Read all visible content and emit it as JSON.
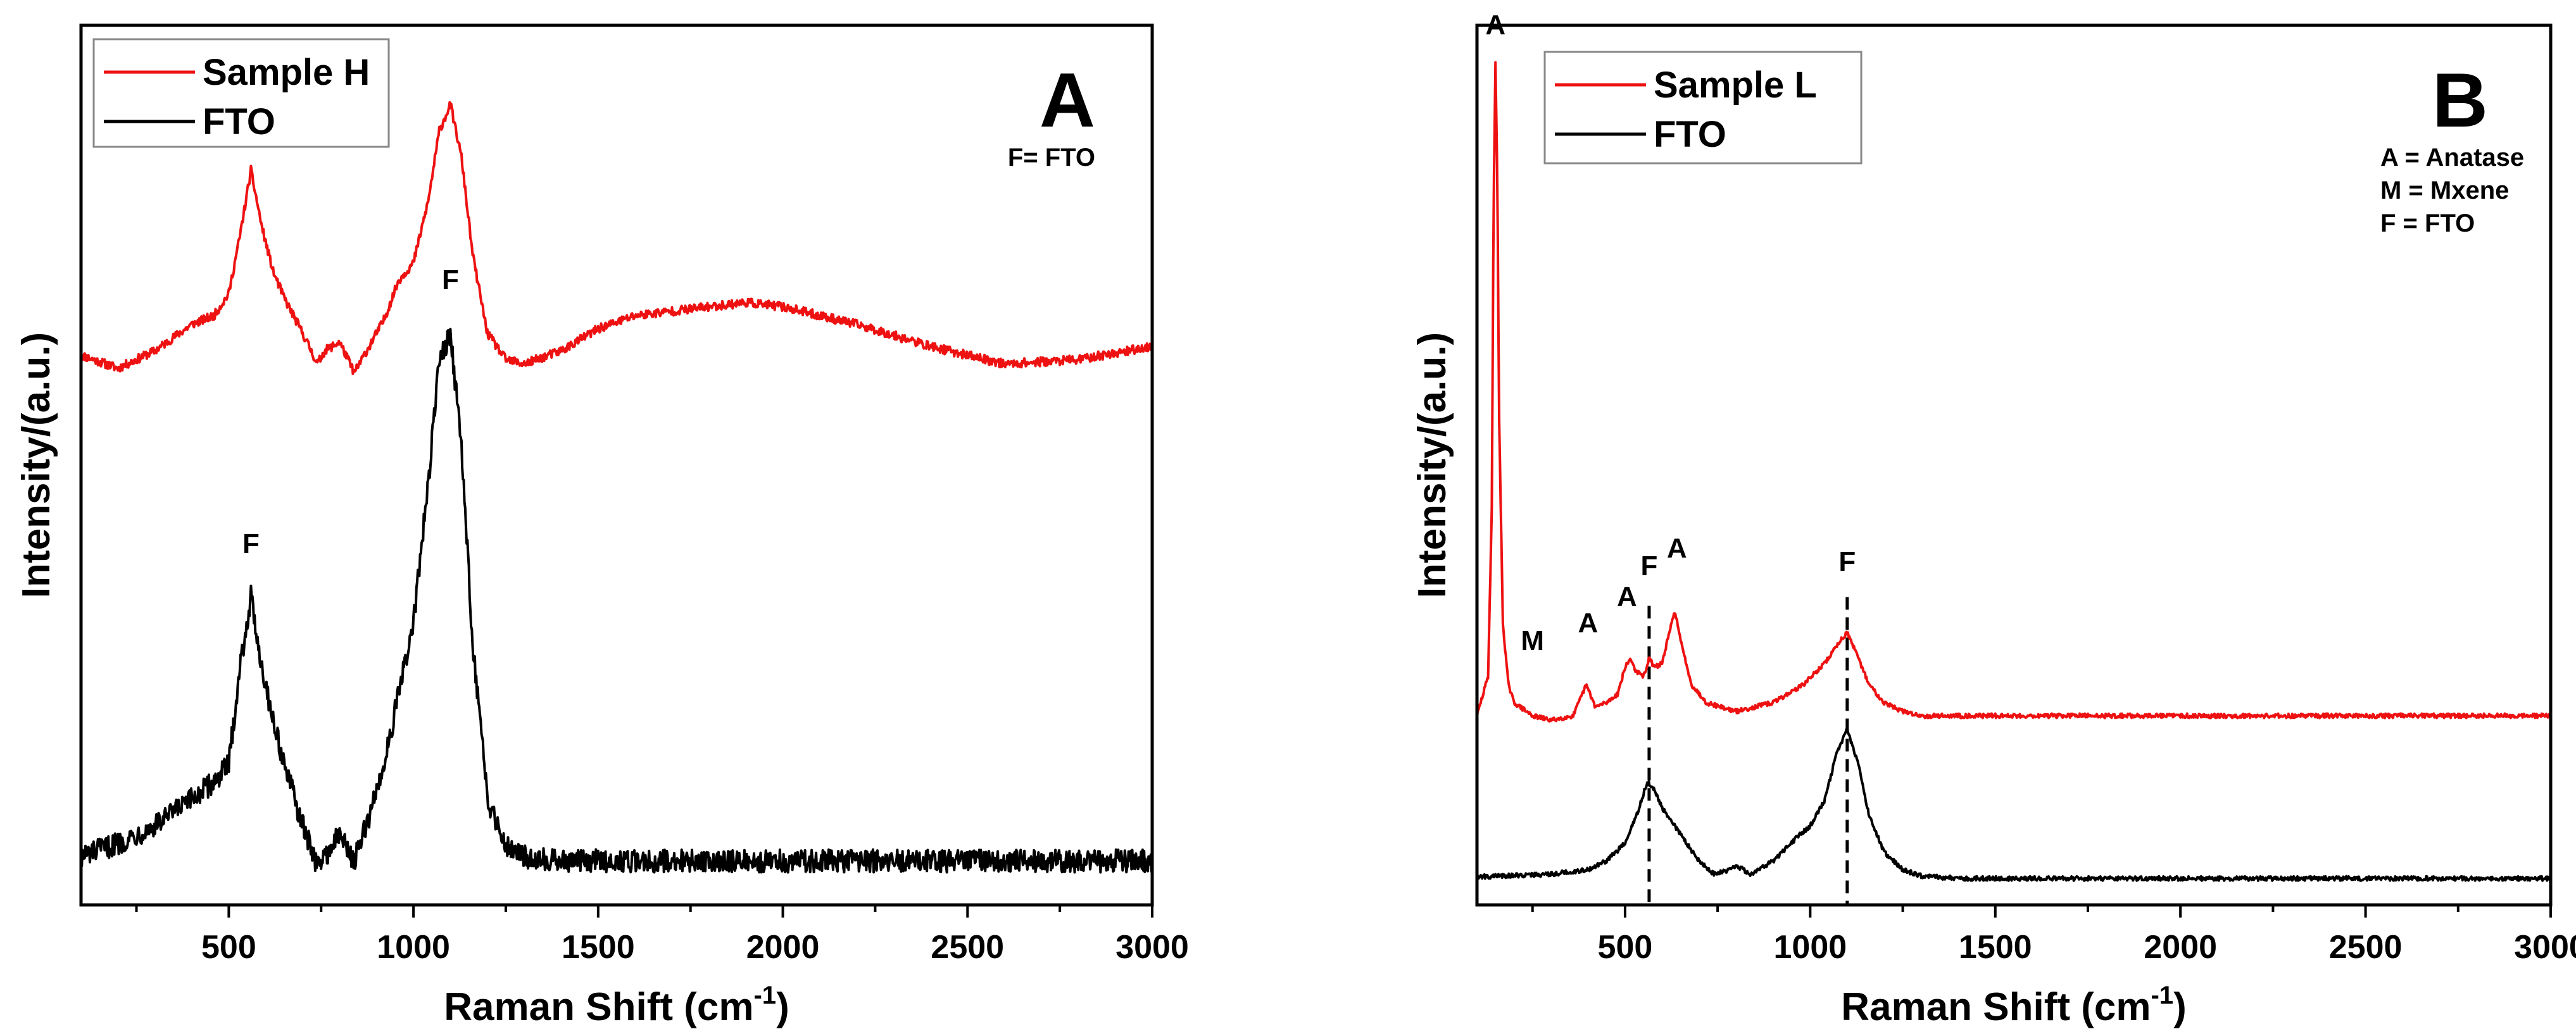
{
  "figure": {
    "panels": [
      "A",
      "B"
    ]
  },
  "chart_data": [
    {
      "type": "line",
      "panel_letter": "A",
      "note_lines": [
        "F= FTO"
      ],
      "xlabel": "Raman Shift (cm-1)",
      "xlabel_main": "Raman Shift (cm",
      "xlabel_sup": "-1",
      "xlabel_end": ")",
      "ylabel": "Intensity/(a.u.)",
      "xlim": [
        100,
        3000
      ],
      "ylim": [
        0,
        100
      ],
      "xticks": [
        500,
        1000,
        1500,
        2000,
        2500,
        3000
      ],
      "xtick_labels": [
        "500",
        "1000",
        "1500",
        "2000",
        "2500",
        "3000"
      ],
      "legend": [
        {
          "label": "Sample H",
          "color": "#ee1111"
        },
        {
          "label": "FTO",
          "color": "#000000"
        }
      ],
      "series": [
        {
          "name": "Sample H",
          "color": "#ee1111",
          "x": [
            100,
            200,
            300,
            400,
            460,
            500,
            530,
            560,
            590,
            620,
            650,
            700,
            740,
            760,
            800,
            840,
            880,
            920,
            960,
            1000,
            1040,
            1070,
            1100,
            1130,
            1160,
            1200,
            1250,
            1300,
            1400,
            1500,
            1600,
            1800,
            1900,
            2000,
            2200,
            2400,
            2600,
            2800,
            3000
          ],
          "y": [
            62.5,
            61.0,
            63.0,
            66.0,
            67.0,
            69.5,
            76.0,
            83.5,
            77.0,
            72.0,
            69.0,
            65.0,
            61.5,
            63.0,
            64.0,
            60.5,
            63.5,
            66.5,
            71.0,
            73.0,
            80.0,
            88.0,
            91.0,
            85.0,
            74.0,
            65.0,
            62.0,
            61.5,
            63.0,
            65.5,
            67.0,
            68.0,
            68.5,
            68.0,
            66.0,
            63.5,
            61.5,
            62.0,
            63.5
          ],
          "noise": 0.5
        },
        {
          "name": "FTO",
          "color": "#000000",
          "x": [
            100,
            200,
            300,
            400,
            460,
            500,
            530,
            560,
            590,
            620,
            650,
            700,
            740,
            760,
            800,
            840,
            880,
            920,
            960,
            1000,
            1040,
            1070,
            1100,
            1130,
            1160,
            1200,
            1250,
            1300,
            1400,
            1600,
            2000,
            2400,
            2800,
            3000
          ],
          "y": [
            5.5,
            7.0,
            9.0,
            12.0,
            14.0,
            16.0,
            27.0,
            35.0,
            27.0,
            21.0,
            16.0,
            9.0,
            4.5,
            5.5,
            8.0,
            5.0,
            10.0,
            16.0,
            24.0,
            32.0,
            48.0,
            62.0,
            65.0,
            52.0,
            30.0,
            12.0,
            7.0,
            5.5,
            5.0,
            5.0,
            5.0,
            5.0,
            5.0,
            5.0
          ],
          "noise": 1.3
        }
      ],
      "annotations": [
        {
          "text": "F",
          "x": 560,
          "y": 40
        },
        {
          "text": "F",
          "x": 1100,
          "y": 70
        }
      ]
    },
    {
      "type": "line",
      "panel_letter": "B",
      "note_lines": [
        "A = Anatase",
        "M = Mxene",
        "F = FTO"
      ],
      "xlabel": "Raman Shift (cm-1)",
      "xlabel_main": "Raman Shift (cm",
      "xlabel_sup": "-1",
      "xlabel_end": ")",
      "ylabel": "Intensity/(a.u.)",
      "xlim": [
        100,
        3000
      ],
      "ylim": [
        0,
        100
      ],
      "xticks": [
        500,
        1000,
        1500,
        2000,
        2500,
        3000
      ],
      "xtick_labels": [
        "500",
        "1000",
        "1500",
        "2000",
        "2500",
        "3000"
      ],
      "legend": [
        {
          "label": "Sample L",
          "color": "#ee1111"
        },
        {
          "label": "FTO",
          "color": "#000000"
        }
      ],
      "series": [
        {
          "name": "Sample L",
          "color": "#ee1111",
          "x": [
            100,
            130,
            140,
            145,
            150,
            155,
            160,
            170,
            185,
            200,
            250,
            300,
            360,
            395,
            405,
            420,
            450,
            480,
            500,
            515,
            530,
            550,
            565,
            580,
            600,
            620,
            635,
            650,
            680,
            720,
            800,
            900,
            980,
            1040,
            1080,
            1100,
            1120,
            1160,
            1200,
            1250,
            1300,
            1400,
            1600,
            2000,
            2500,
            3000
          ],
          "y": [
            21.5,
            26.0,
            45.0,
            80.0,
            96.0,
            82.0,
            55.0,
            32.0,
            25.0,
            23.0,
            21.5,
            21.0,
            21.5,
            25.0,
            24.0,
            22.5,
            23.0,
            24.0,
            27.0,
            28.0,
            26.5,
            26.0,
            28.0,
            27.0,
            27.5,
            31.0,
            33.5,
            30.0,
            25.0,
            23.0,
            22.0,
            23.0,
            25.0,
            27.5,
            30.0,
            31.0,
            29.0,
            25.0,
            23.0,
            22.0,
            21.5,
            21.5,
            21.5,
            21.5,
            21.5,
            21.5
          ],
          "noise": 0.25
        },
        {
          "name": "FTO",
          "color": "#000000",
          "x": [
            100,
            300,
            400,
            450,
            500,
            530,
            560,
            580,
            600,
            650,
            700,
            740,
            780,
            800,
            840,
            900,
            960,
            1000,
            1040,
            1070,
            1100,
            1130,
            1160,
            1200,
            1250,
            1300,
            1400,
            2000,
            3000
          ],
          "y": [
            3.2,
            3.5,
            4.0,
            5.0,
            7.0,
            10.0,
            14.0,
            13.0,
            11.0,
            8.0,
            5.0,
            3.5,
            4.0,
            4.5,
            3.5,
            5.0,
            7.5,
            9.0,
            12.0,
            17.0,
            20.0,
            16.0,
            10.0,
            6.0,
            4.0,
            3.3,
            3.0,
            3.0,
            3.0
          ],
          "noise": 0.25
        }
      ],
      "annotations": [
        {
          "text": "A",
          "x": 150,
          "y": 99
        },
        {
          "text": "M",
          "x": 250,
          "y": 29
        },
        {
          "text": "A",
          "x": 400,
          "y": 31
        },
        {
          "text": "A",
          "x": 505,
          "y": 34
        },
        {
          "text": "F",
          "x": 565,
          "y": 37.5
        },
        {
          "text": "A",
          "x": 640,
          "y": 39.5
        },
        {
          "text": "F",
          "x": 1100,
          "y": 38
        }
      ],
      "reference_lines": [
        {
          "x": 565,
          "y_top": 34,
          "y_bottom": 0
        },
        {
          "x": 1100,
          "y_top": 35,
          "y_bottom": 0
        }
      ]
    }
  ]
}
